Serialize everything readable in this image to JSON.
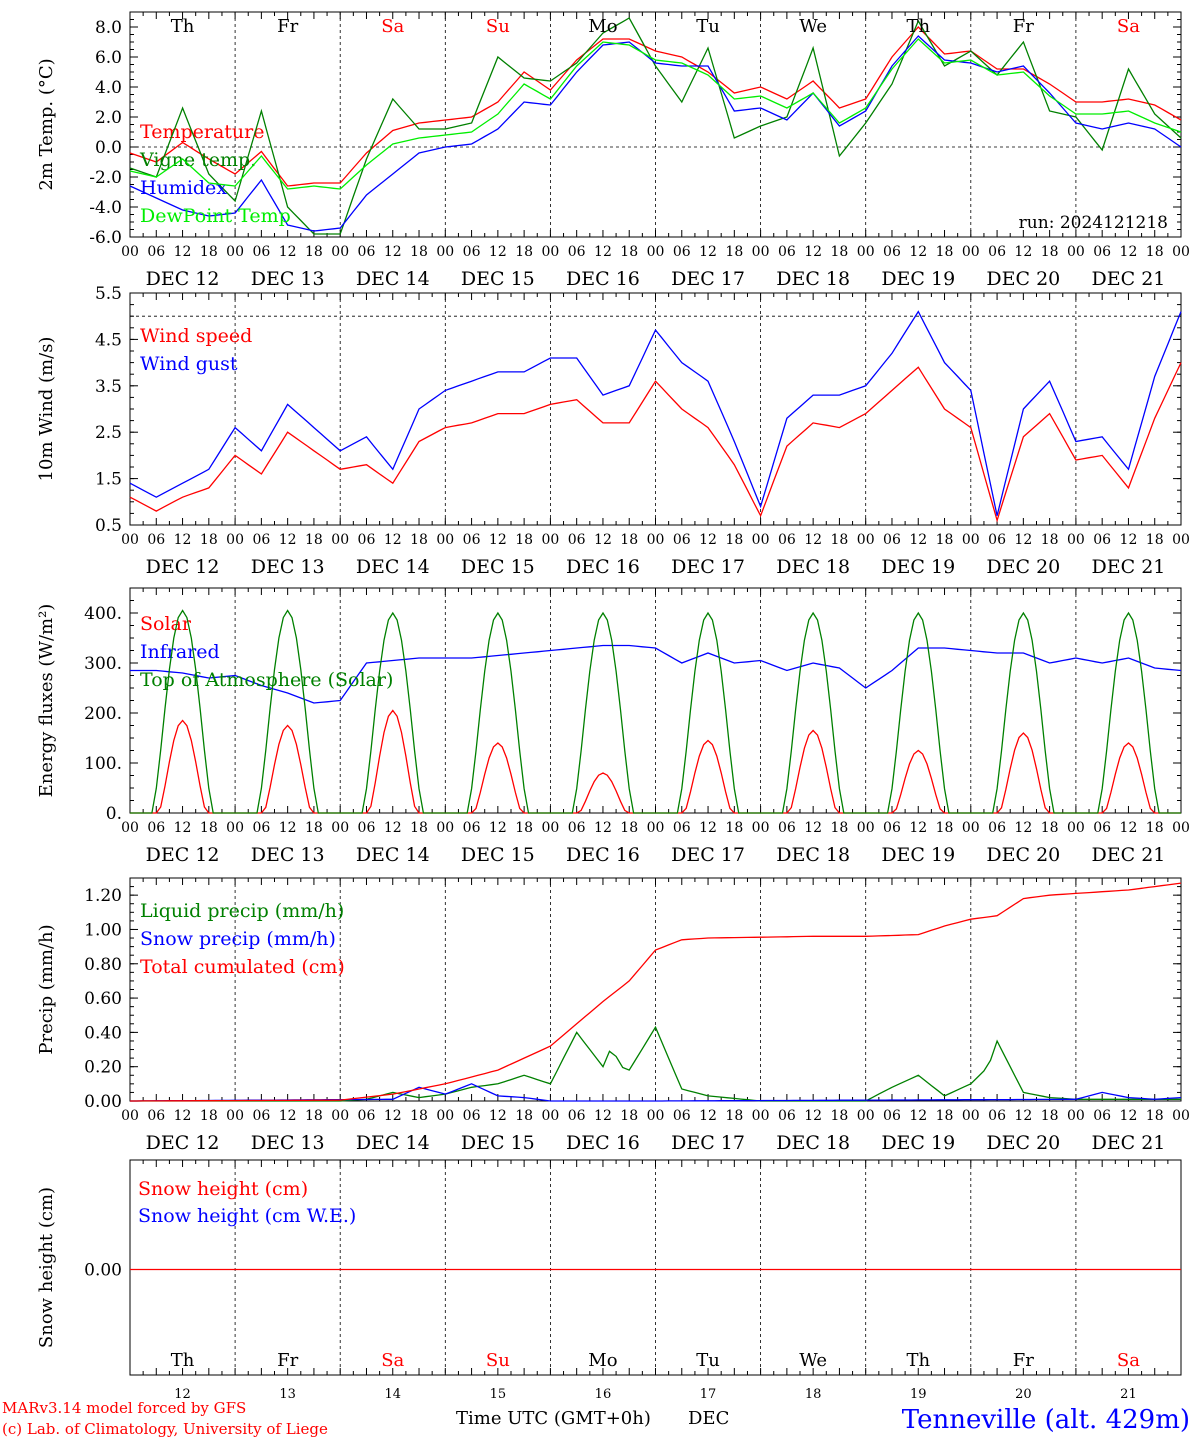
{
  "days": [
    "Th",
    "Fr",
    "Sa",
    "Su",
    "Mo",
    "Tu",
    "We",
    "Th",
    "Fr",
    "Sa"
  ],
  "day_colors": [
    "#000000",
    "#000000",
    "#ff0000",
    "#ff0000",
    "#000000",
    "#000000",
    "#000000",
    "#000000",
    "#000000",
    "#ff0000"
  ],
  "dates": [
    "DEC 12",
    "DEC 13",
    "DEC 14",
    "DEC 15",
    "DEC 16",
    "DEC 17",
    "DEC 18",
    "DEC 19",
    "DEC 20",
    "DEC 21"
  ],
  "date_numbers": [
    "12",
    "13",
    "14",
    "15",
    "16",
    "17",
    "18",
    "19",
    "20",
    "21"
  ],
  "hour_ticks": [
    "00",
    "06",
    "12",
    "18"
  ],
  "last_hour_tick": "00",
  "run_label": "run: 2024121218",
  "xlabel": "Time UTC (GMT+0h)",
  "xlabel_month": "DEC",
  "station": "Tenneville (alt. 429m)",
  "credit_line1": "MARv3.14 model forced by GFS",
  "credit_line2": "(c) Lab. of Climatology, University of Liege",
  "chart_data": [
    {
      "type": "line",
      "ylabel": "2m Temp. (°C)",
      "ylim": [
        -6,
        9
      ],
      "yticks": [
        "-6.0",
        "-4.0",
        "-2.0",
        "0.0",
        "2.0",
        "4.0",
        "6.0",
        "8.0"
      ],
      "yvalues": [
        -6,
        -4,
        -2,
        0,
        2,
        4,
        6,
        8
      ],
      "dashed_ref": 0,
      "x_hours": "hours since DEC 12 00 UTC",
      "series": [
        {
          "name": "Temperature",
          "color": "#ff0000",
          "x": [
            0,
            6,
            12,
            18,
            24,
            30,
            36,
            42,
            48,
            54,
            60,
            66,
            72,
            78,
            84,
            90,
            96,
            102,
            108,
            114,
            120,
            126,
            132,
            138,
            144,
            150,
            156,
            162,
            168,
            174,
            180,
            186,
            192,
            198,
            204,
            210,
            216,
            222,
            228,
            234,
            240
          ],
          "y": [
            -0.4,
            -1.0,
            0.3,
            -0.8,
            -1.8,
            -0.3,
            -2.6,
            -2.4,
            -2.4,
            -0.4,
            1.1,
            1.6,
            1.8,
            2.0,
            3.0,
            5.0,
            3.8,
            5.8,
            7.2,
            7.2,
            6.4,
            6.0,
            5.0,
            3.6,
            4.0,
            3.2,
            4.4,
            2.6,
            3.2,
            6.0,
            8.0,
            6.2,
            6.4,
            5.2,
            5.2,
            4.2,
            3.0,
            3.0,
            3.2,
            2.8,
            1.8
          ]
        },
        {
          "name": "Vigne temp.",
          "color": "#008000",
          "x": [
            0,
            6,
            12,
            18,
            24,
            30,
            36,
            42,
            48,
            54,
            60,
            66,
            72,
            78,
            84,
            90,
            96,
            102,
            108,
            114,
            120,
            126,
            132,
            138,
            144,
            150,
            156,
            162,
            168,
            174,
            180,
            186,
            192,
            198,
            204,
            210,
            216,
            222,
            228,
            234,
            240
          ],
          "y": [
            -1.4,
            -2.0,
            2.6,
            -1.8,
            -3.6,
            2.4,
            -4.0,
            -5.8,
            -5.8,
            -0.8,
            3.2,
            1.2,
            1.2,
            1.6,
            6.0,
            4.6,
            4.4,
            5.6,
            7.6,
            8.6,
            5.4,
            3.0,
            6.6,
            0.6,
            1.4,
            2.0,
            6.6,
            -0.6,
            1.6,
            4.2,
            8.4,
            5.4,
            6.4,
            4.8,
            7.0,
            2.4,
            2.0,
            -0.2,
            5.2,
            2.2,
            0.6
          ]
        },
        {
          "name": "Humidex",
          "color": "#0000ff",
          "x": [
            0,
            6,
            12,
            18,
            24,
            30,
            36,
            42,
            48,
            54,
            60,
            66,
            72,
            78,
            84,
            90,
            96,
            102,
            108,
            114,
            120,
            126,
            132,
            138,
            144,
            150,
            156,
            162,
            168,
            174,
            180,
            186,
            192,
            198,
            204,
            210,
            216,
            222,
            228,
            234,
            240
          ],
          "y": [
            -2.6,
            -3.4,
            -4.2,
            -4.6,
            -4.4,
            -2.2,
            -5.2,
            -5.6,
            -5.4,
            -3.2,
            -1.8,
            -0.4,
            0.0,
            0.2,
            1.2,
            3.0,
            2.8,
            5.0,
            6.8,
            7.0,
            5.6,
            5.4,
            5.4,
            2.4,
            2.6,
            1.8,
            3.6,
            1.4,
            2.4,
            5.4,
            7.4,
            5.8,
            5.6,
            5.0,
            5.4,
            3.6,
            1.6,
            1.2,
            1.6,
            1.2,
            0.0
          ]
        },
        {
          "name": "DewPoint Temp",
          "color": "#00ee00",
          "x": [
            0,
            6,
            12,
            18,
            24,
            30,
            36,
            42,
            48,
            54,
            60,
            66,
            72,
            78,
            84,
            90,
            96,
            102,
            108,
            114,
            120,
            126,
            132,
            138,
            144,
            150,
            156,
            162,
            168,
            174,
            180,
            186,
            192,
            198,
            204,
            210,
            216,
            222,
            228,
            234,
            240
          ],
          "y": [
            -1.6,
            -2.0,
            -0.8,
            -2.4,
            -2.6,
            -0.6,
            -2.8,
            -2.6,
            -2.8,
            -1.2,
            0.2,
            0.6,
            0.8,
            1.0,
            2.2,
            4.2,
            3.2,
            5.4,
            7.0,
            6.8,
            5.8,
            5.6,
            4.8,
            3.2,
            3.4,
            2.6,
            3.6,
            1.6,
            2.6,
            5.2,
            7.2,
            5.6,
            5.8,
            4.8,
            5.0,
            3.4,
            2.2,
            2.2,
            2.4,
            1.6,
            1.0
          ]
        }
      ]
    },
    {
      "type": "line",
      "ylabel": "10m Wind (m/s)",
      "ylim": [
        0.5,
        5.5
      ],
      "yticks": [
        "0.5",
        "1.5",
        "2.5",
        "3.5",
        "4.5",
        "5.5"
      ],
      "yvalues": [
        0.5,
        1.5,
        2.5,
        3.5,
        4.5,
        5.5
      ],
      "dashed_ref": 5.0,
      "series": [
        {
          "name": "Wind speed",
          "color": "#ff0000",
          "x": [
            0,
            6,
            12,
            18,
            24,
            30,
            36,
            42,
            48,
            54,
            60,
            66,
            72,
            78,
            84,
            90,
            96,
            102,
            108,
            114,
            120,
            126,
            132,
            138,
            144,
            150,
            156,
            162,
            168,
            174,
            180,
            186,
            192,
            198,
            204,
            210,
            216,
            222,
            228,
            234,
            240
          ],
          "y": [
            1.1,
            0.8,
            1.1,
            1.3,
            2.0,
            1.6,
            2.5,
            2.1,
            1.7,
            1.8,
            1.4,
            2.3,
            2.6,
            2.7,
            2.9,
            2.9,
            3.1,
            3.2,
            2.7,
            2.7,
            3.6,
            3.0,
            2.6,
            1.8,
            0.7,
            2.2,
            2.7,
            2.6,
            2.9,
            3.4,
            3.9,
            3.0,
            2.6,
            0.6,
            2.4,
            2.9,
            1.9,
            2.0,
            1.3,
            2.8,
            4.0
          ]
        },
        {
          "name": "Wind gust",
          "color": "#0000ff",
          "x": [
            0,
            6,
            12,
            18,
            24,
            30,
            36,
            42,
            48,
            54,
            60,
            66,
            72,
            78,
            84,
            90,
            96,
            102,
            108,
            114,
            120,
            126,
            132,
            138,
            144,
            150,
            156,
            162,
            168,
            174,
            180,
            186,
            192,
            198,
            204,
            210,
            216,
            222,
            228,
            234,
            240
          ],
          "y": [
            1.4,
            1.1,
            1.4,
            1.7,
            2.6,
            2.1,
            3.1,
            2.6,
            2.1,
            2.4,
            1.7,
            3.0,
            3.4,
            3.6,
            3.8,
            3.8,
            4.1,
            4.1,
            3.3,
            3.5,
            4.7,
            4.0,
            3.6,
            2.3,
            0.9,
            2.8,
            3.3,
            3.3,
            3.5,
            4.2,
            5.1,
            4.0,
            3.4,
            0.7,
            3.0,
            3.6,
            2.3,
            2.4,
            1.7,
            3.7,
            5.1
          ]
        }
      ]
    },
    {
      "type": "line",
      "ylabel": "Energy fluxes (W/m²)",
      "ylim": [
        0,
        450
      ],
      "yticks": [
        "0.",
        "100.",
        "200.",
        "300.",
        "400."
      ],
      "yvalues": [
        0,
        100,
        200,
        300,
        400
      ],
      "series": [
        {
          "name": "Solar",
          "color": "#ff0000",
          "peaks": [
            185,
            175,
            205,
            140,
            80,
            145,
            165,
            125,
            160,
            140
          ]
        },
        {
          "name": "Infrared",
          "color": "#0000ff",
          "x": [
            0,
            6,
            12,
            18,
            24,
            30,
            36,
            42,
            48,
            54,
            60,
            66,
            72,
            78,
            84,
            90,
            96,
            102,
            108,
            114,
            120,
            126,
            132,
            138,
            144,
            150,
            156,
            162,
            168,
            174,
            180,
            186,
            192,
            198,
            204,
            210,
            216,
            222,
            228,
            234,
            240
          ],
          "y": [
            285,
            285,
            280,
            270,
            275,
            255,
            240,
            220,
            225,
            300,
            305,
            310,
            310,
            310,
            315,
            320,
            325,
            330,
            335,
            335,
            330,
            300,
            320,
            300,
            305,
            285,
            300,
            290,
            250,
            285,
            330,
            330,
            325,
            320,
            320,
            300,
            310,
            300,
            310,
            290,
            285
          ]
        },
        {
          "name": "Top of Atmosphere (Solar)",
          "color": "#008000",
          "peaks": [
            405,
            405,
            400,
            400,
            400,
            400,
            400,
            400,
            400,
            400
          ]
        }
      ]
    },
    {
      "type": "line",
      "ylabel": "Precip (mm/h)",
      "ylim": [
        0,
        1.3
      ],
      "yticks": [
        "0.00",
        "0.20",
        "0.40",
        "0.60",
        "0.80",
        "1.00",
        "1.20"
      ],
      "yvalues": [
        0,
        0.2,
        0.4,
        0.6,
        0.8,
        1.0,
        1.2
      ],
      "series": [
        {
          "name": "Liquid precip (mm/h)",
          "color": "#008000",
          "x": [
            0,
            48,
            54,
            60,
            66,
            72,
            78,
            84,
            90,
            96,
            100,
            102,
            108,
            110,
            112,
            114,
            120,
            126,
            132,
            144,
            168,
            174,
            180,
            186,
            192,
            196,
            198,
            204,
            210,
            216,
            240
          ],
          "y": [
            0,
            0,
            0.01,
            0.05,
            0.02,
            0.04,
            0.08,
            0.1,
            0.15,
            0.1,
            0.3,
            0.4,
            0.2,
            0.32,
            0.2,
            0.18,
            0.43,
            0.07,
            0.03,
            0.0,
            0.0,
            0.08,
            0.15,
            0.03,
            0.1,
            0.2,
            0.35,
            0.05,
            0.02,
            0.01,
            0.01
          ]
        },
        {
          "name": "Snow precip (mm/h)",
          "color": "#0000ff",
          "x": [
            0,
            60,
            66,
            72,
            78,
            84,
            90,
            96,
            120,
            216,
            222,
            228,
            234,
            240
          ],
          "y": [
            0,
            0.01,
            0.08,
            0.04,
            0.1,
            0.03,
            0.02,
            0.0,
            0.0,
            0.01,
            0.05,
            0.02,
            0.01,
            0.02
          ]
        },
        {
          "name": "Total cumulated (cm)",
          "color": "#ff0000",
          "x": [
            0,
            48,
            60,
            72,
            84,
            96,
            102,
            108,
            114,
            120,
            126,
            132,
            144,
            156,
            168,
            180,
            186,
            192,
            198,
            204,
            210,
            216,
            228,
            240
          ],
          "y": [
            0,
            0.005,
            0.04,
            0.1,
            0.18,
            0.32,
            0.45,
            0.58,
            0.7,
            0.88,
            0.94,
            0.95,
            0.955,
            0.96,
            0.96,
            0.97,
            1.02,
            1.06,
            1.08,
            1.18,
            1.2,
            1.21,
            1.23,
            1.27
          ]
        }
      ]
    },
    {
      "type": "line",
      "ylabel": "Snow height (cm)",
      "yticks": [
        "0.00"
      ],
      "yvalues": [
        0
      ],
      "series": [
        {
          "name": "Snow height (cm)",
          "color": "#ff0000",
          "x": [
            0,
            240
          ],
          "y": [
            0,
            0
          ]
        },
        {
          "name": "Snow height (cm W.E.)",
          "color": "#0000ff",
          "x": [
            0,
            240
          ],
          "y": [
            0,
            0
          ]
        }
      ]
    }
  ]
}
